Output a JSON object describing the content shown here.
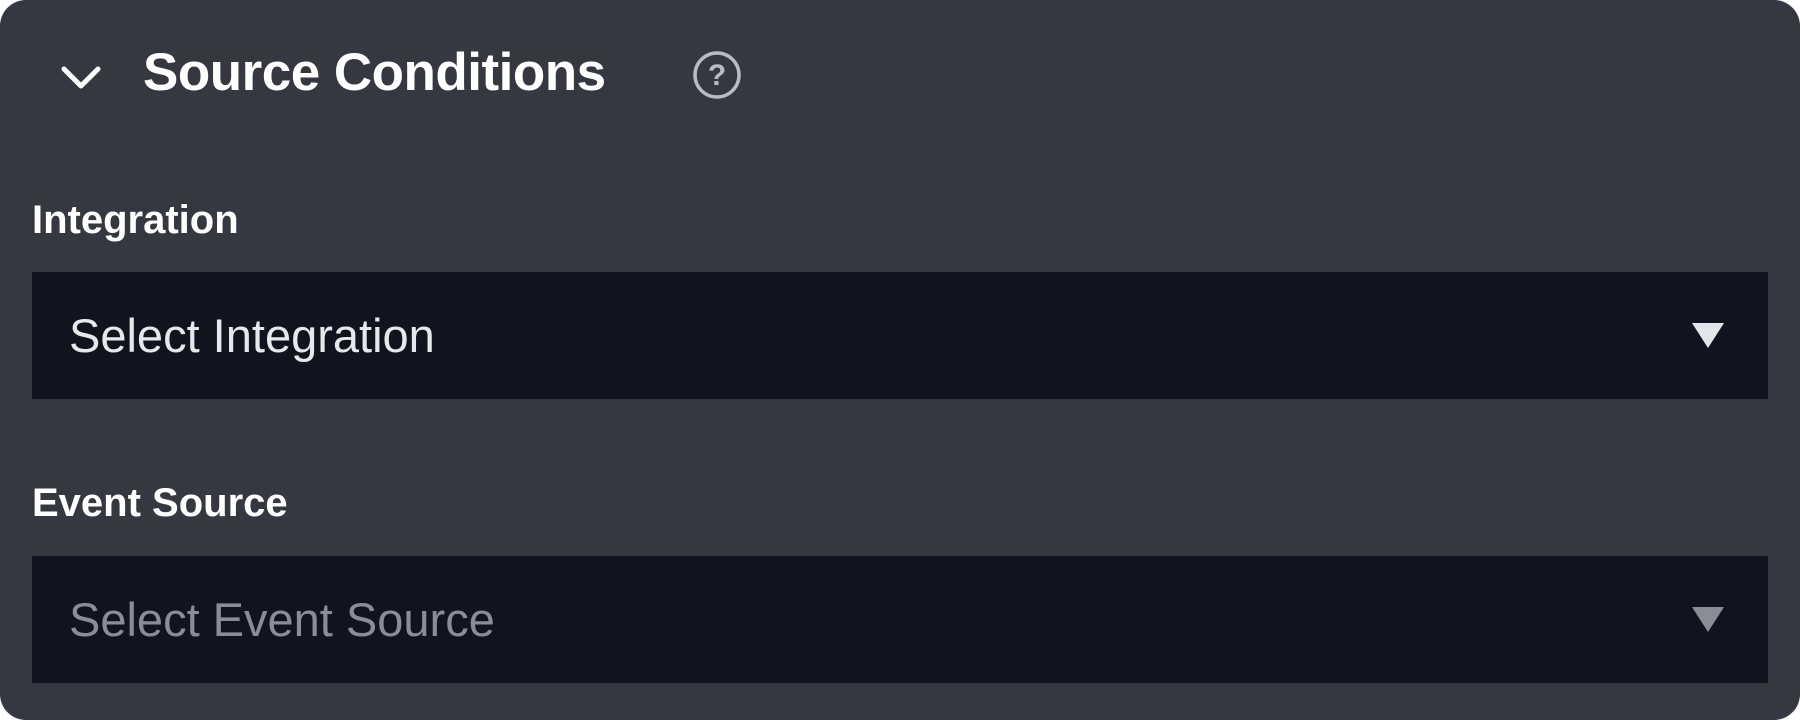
{
  "section": {
    "title": "Source Conditions",
    "expanded": true,
    "chevron_icon": "chevron-down-icon",
    "help_icon": "question-circle-icon"
  },
  "fields": [
    {
      "label": "Integration",
      "value": "Select Integration",
      "is_placeholder": false,
      "icon": "caret-down-icon"
    },
    {
      "label": "Event Source",
      "value": "Select Event Source",
      "is_placeholder": true,
      "icon": "caret-down-icon"
    }
  ],
  "colors": {
    "panel_bg": "#353841",
    "select_bg": "#11141e",
    "text": "#ffffff",
    "placeholder": "#8a8d95"
  }
}
